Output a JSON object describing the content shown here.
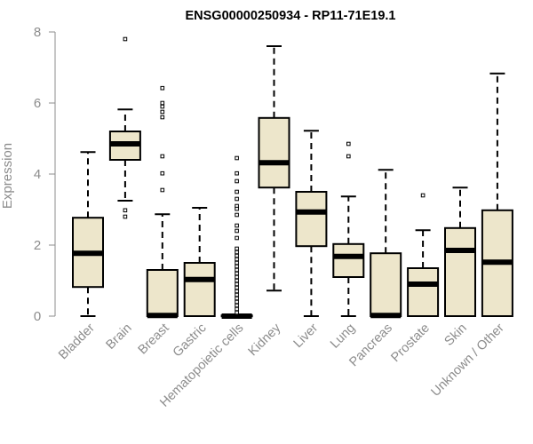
{
  "chart_data": {
    "type": "boxplot",
    "title": "ENSG00000250934 - RP11-71E19.1",
    "xlabel": "",
    "ylabel": "Expression",
    "ylim": [
      0,
      8
    ],
    "yticks": [
      0,
      2,
      4,
      6,
      8
    ],
    "grid": false,
    "box_fill": "#ede6cb",
    "box_stroke": "#000000",
    "axis_color": "#8c8c8c",
    "categories": [
      "Bladder",
      "Brain",
      "Breast",
      "Gastric",
      "Hematopoietic cells",
      "Kidney",
      "Liver",
      "Lung",
      "Pancreas",
      "Prostate",
      "Skin",
      "Unknown / Other"
    ],
    "boxes": [
      {
        "name": "Bladder",
        "whisker_low": 0.0,
        "q1": 0.82,
        "median": 1.77,
        "q3": 2.77,
        "whisker_high": 4.62,
        "outliers": []
      },
      {
        "name": "Brain",
        "whisker_low": 3.25,
        "q1": 4.4,
        "median": 4.85,
        "q3": 5.2,
        "whisker_high": 5.82,
        "outliers": [
          7.8,
          2.98,
          2.8
        ]
      },
      {
        "name": "Breast",
        "whisker_low": 0.0,
        "q1": 0.0,
        "median": 0.02,
        "q3": 1.3,
        "whisker_high": 2.87,
        "outliers": [
          6.42,
          6.0,
          5.9,
          5.75,
          5.6,
          4.5,
          4.02,
          3.55
        ]
      },
      {
        "name": "Gastric",
        "whisker_low": 0.0,
        "q1": 0.0,
        "median": 1.03,
        "q3": 1.5,
        "whisker_high": 3.05,
        "outliers": []
      },
      {
        "name": "Hematopoietic cells",
        "whisker_low": 0.0,
        "q1": 0.0,
        "median": 0.0,
        "q3": 0.02,
        "whisker_high": 0.02,
        "outliers": [
          4.45,
          4.02,
          3.8,
          3.5,
          3.3,
          3.1,
          3.02,
          2.85,
          2.55,
          2.4,
          2.2,
          1.9,
          1.8,
          1.7,
          1.6,
          1.5,
          1.4,
          1.3,
          1.2,
          1.1,
          1.0,
          0.9,
          0.8,
          0.7,
          0.6,
          0.5,
          0.4,
          0.3,
          0.2,
          0.1
        ]
      },
      {
        "name": "Kidney",
        "whisker_low": 0.72,
        "q1": 3.62,
        "median": 4.32,
        "q3": 5.58,
        "whisker_high": 7.6,
        "outliers": []
      },
      {
        "name": "Liver",
        "whisker_low": 0.0,
        "q1": 1.97,
        "median": 2.93,
        "q3": 3.5,
        "whisker_high": 5.22,
        "outliers": []
      },
      {
        "name": "Lung",
        "whisker_low": 0.0,
        "q1": 1.1,
        "median": 1.68,
        "q3": 2.03,
        "whisker_high": 3.37,
        "outliers": [
          4.85,
          4.5
        ]
      },
      {
        "name": "Pancreas",
        "whisker_low": 0.0,
        "q1": 0.0,
        "median": 0.02,
        "q3": 1.77,
        "whisker_high": 4.12,
        "outliers": []
      },
      {
        "name": "Prostate",
        "whisker_low": 0.0,
        "q1": 0.0,
        "median": 0.9,
        "q3": 1.35,
        "whisker_high": 2.42,
        "outliers": [
          3.4
        ]
      },
      {
        "name": "Skin",
        "whisker_low": 0.0,
        "q1": 0.0,
        "median": 1.85,
        "q3": 2.48,
        "whisker_high": 3.62,
        "outliers": []
      },
      {
        "name": "Unknown / Other",
        "whisker_low": 0.0,
        "q1": 0.0,
        "median": 1.52,
        "q3": 2.98,
        "whisker_high": 6.83,
        "outliers": []
      }
    ]
  }
}
